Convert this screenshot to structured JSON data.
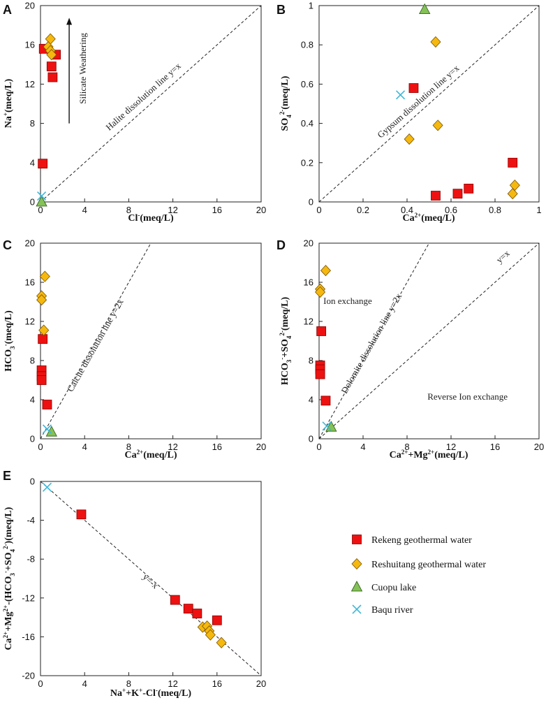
{
  "colors": {
    "rekeng": "#ee1111",
    "reshuitang": "#f5b80e",
    "cuopu": "#84c157",
    "baqu": "#3fb8d8",
    "line": "#222222"
  },
  "legend": [
    {
      "label": "Rekeng geothermal water",
      "marker": "square",
      "color": "#ee1111"
    },
    {
      "label": "Reshuitang geothermal water",
      "marker": "diamond",
      "color": "#f5b80e"
    },
    {
      "label": "Cuopu lake",
      "marker": "triangle",
      "color": "#84c157"
    },
    {
      "label": "Baqu river",
      "marker": "cross",
      "color": "#3fb8d8"
    }
  ],
  "chart_data": [
    {
      "panel": "A",
      "type": "scatter",
      "ylabel_parts": [
        {
          "t": "Na"
        },
        {
          "t": "+",
          "sup": true
        },
        {
          "t": "(meq/L)"
        }
      ],
      "xlabel_parts": [
        {
          "t": "Cl"
        },
        {
          "t": "-",
          "sup": true
        },
        {
          "t": "(meq/L)"
        }
      ],
      "xlim": [
        0,
        20
      ],
      "ylim": [
        0,
        20
      ],
      "xticks": [
        0,
        4,
        8,
        12,
        16,
        20
      ],
      "yticks": [
        0,
        4,
        8,
        12,
        16,
        20
      ],
      "lines": [
        {
          "from": [
            0,
            0
          ],
          "to": [
            20,
            20
          ],
          "label": "Halite dissolution line y=x",
          "label_at": [
            9.5,
            10.5
          ],
          "label_angle": -41.6
        }
      ],
      "annotations": [
        {
          "text": "Silicate Weathering",
          "at": [
            4.1,
            13.6
          ],
          "angle": -90
        }
      ],
      "arrows": [
        {
          "from": [
            2.6,
            8.0
          ],
          "to": [
            2.6,
            18.4
          ]
        }
      ],
      "series": [
        {
          "name": "Rekeng geothermal water",
          "marker": "square",
          "points": [
            [
              0.3,
              15.6
            ],
            [
              1.4,
              15.0
            ],
            [
              1.0,
              13.8
            ],
            [
              1.1,
              12.7
            ],
            [
              0.2,
              3.9
            ]
          ]
        },
        {
          "name": "Reshuitang geothermal water",
          "marker": "diamond",
          "points": [
            [
              0.9,
              16.6
            ],
            [
              0.7,
              15.8
            ],
            [
              0.9,
              15.4
            ],
            [
              1.0,
              15.0
            ]
          ]
        },
        {
          "name": "Cuopu lake",
          "marker": "triangle",
          "points": [
            [
              0.1,
              0.0
            ]
          ]
        },
        {
          "name": "Baqu river",
          "marker": "cross",
          "points": [
            [
              0.1,
              0.6
            ]
          ]
        }
      ]
    },
    {
      "panel": "B",
      "type": "scatter",
      "ylabel_parts": [
        {
          "t": "SO"
        },
        {
          "t": "4",
          "sub": true
        },
        {
          "t": "2-",
          "sup": true
        },
        {
          "t": "(meq/L)"
        }
      ],
      "xlabel_parts": [
        {
          "t": "Ca"
        },
        {
          "t": "2+",
          "sup": true
        },
        {
          "t": "(meq/L)"
        }
      ],
      "xlim": [
        0,
        1
      ],
      "ylim": [
        0,
        1
      ],
      "xticks": [
        0,
        0.2,
        0.4,
        0.6,
        0.8,
        1
      ],
      "yticks": [
        0,
        0.2,
        0.4,
        0.6,
        0.8,
        1
      ],
      "lines": [
        {
          "from": [
            0,
            0
          ],
          "to": [
            1,
            1
          ],
          "label": "Gypsum dissolution line y=x",
          "label_at": [
            0.46,
            0.5
          ],
          "label_angle": -41.3
        }
      ],
      "annotations": [],
      "arrows": [],
      "series": [
        {
          "name": "Rekeng geothermal water",
          "marker": "square",
          "points": [
            [
              0.43,
              0.58
            ],
            [
              0.88,
              0.2
            ],
            [
              0.68,
              0.068
            ],
            [
              0.63,
              0.042
            ],
            [
              0.53,
              0.032
            ]
          ]
        },
        {
          "name": "Reshuitang geothermal water",
          "marker": "diamond",
          "points": [
            [
              0.53,
              0.815
            ],
            [
              0.54,
              0.39
            ],
            [
              0.41,
              0.32
            ],
            [
              0.89,
              0.085
            ],
            [
              0.88,
              0.042
            ]
          ]
        },
        {
          "name": "Cuopu lake",
          "marker": "triangle",
          "points": [
            [
              0.48,
              0.98
            ]
          ]
        },
        {
          "name": "Baqu river",
          "marker": "cross",
          "points": [
            [
              0.37,
              0.545
            ]
          ]
        }
      ]
    },
    {
      "panel": "C",
      "type": "scatter",
      "ylabel_parts": [
        {
          "t": "HCO"
        },
        {
          "t": "3",
          "sub": true
        },
        {
          "t": "-",
          "sup": true
        },
        {
          "t": "(meq/L)"
        }
      ],
      "xlabel_parts": [
        {
          "t": "Ca"
        },
        {
          "t": "2+",
          "sup": true
        },
        {
          "t": "(meq/L)"
        }
      ],
      "xlim": [
        0,
        20
      ],
      "ylim": [
        0,
        20
      ],
      "xticks": [
        0,
        4,
        8,
        12,
        16,
        20
      ],
      "yticks": [
        0,
        4,
        8,
        12,
        16,
        20
      ],
      "lines": [
        {
          "from": [
            0,
            0
          ],
          "to": [
            10,
            20
          ],
          "label": "Calcite dissolution line y=2x",
          "label_at": [
            5.2,
            9.4
          ],
          "label_angle": -60.5
        }
      ],
      "annotations": [],
      "arrows": [],
      "series": [
        {
          "name": "Rekeng geothermal water",
          "marker": "square",
          "points": [
            [
              0.2,
              10.2
            ],
            [
              0.1,
              7.0
            ],
            [
              0.1,
              6.4
            ],
            [
              0.1,
              6.0
            ],
            [
              0.6,
              3.5
            ]
          ]
        },
        {
          "name": "Reshuitang geothermal water",
          "marker": "diamond",
          "points": [
            [
              0.4,
              16.6
            ],
            [
              0.1,
              14.6
            ],
            [
              0.1,
              14.2
            ],
            [
              0.3,
              11.1
            ]
          ]
        },
        {
          "name": "Cuopu lake",
          "marker": "triangle",
          "points": [
            [
              1.0,
              0.7
            ]
          ]
        },
        {
          "name": "Baqu river",
          "marker": "cross",
          "points": [
            [
              0.6,
              1.0
            ]
          ]
        }
      ]
    },
    {
      "panel": "D",
      "type": "scatter",
      "ylabel_parts": [
        {
          "t": "HCO"
        },
        {
          "t": "3",
          "sub": true
        },
        {
          "t": "-",
          "sup": true
        },
        {
          "t": "+SO"
        },
        {
          "t": "4",
          "sub": true
        },
        {
          "t": "2-",
          "sup": true
        },
        {
          "t": "(meq/L)"
        }
      ],
      "xlabel_parts": [
        {
          "t": "Ca"
        },
        {
          "t": "2+",
          "sup": true
        },
        {
          "t": "+Mg"
        },
        {
          "t": "2+",
          "sup": true
        },
        {
          "t": "(meq/L)"
        }
      ],
      "xlim": [
        0,
        20
      ],
      "ylim": [
        0,
        20
      ],
      "xticks": [
        0,
        4,
        8,
        12,
        16,
        20
      ],
      "yticks": [
        0,
        4,
        8,
        12,
        16,
        20
      ],
      "lines": [
        {
          "from": [
            0,
            0
          ],
          "to": [
            10,
            20
          ],
          "label": "Dolomite dissolution line y=2x",
          "label_at": [
            5.0,
            9.6
          ],
          "label_angle": -60.5
        },
        {
          "from": [
            0,
            0
          ],
          "to": [
            20,
            20
          ],
          "label": "y=x",
          "label_at": [
            16.9,
            18.4
          ],
          "label_angle": -41.6
        }
      ],
      "annotations": [
        {
          "text": "Ion exchange",
          "at": [
            2.6,
            13.8
          ],
          "angle": 0
        },
        {
          "text": "Reverse Ion exchange",
          "at": [
            13.5,
            4.0
          ],
          "angle": 0
        }
      ],
      "arrows": [],
      "series": [
        {
          "name": "Rekeng geothermal water",
          "marker": "square",
          "points": [
            [
              0.2,
              11.0
            ],
            [
              0.1,
              7.5
            ],
            [
              0.1,
              7.1
            ],
            [
              0.1,
              6.6
            ],
            [
              0.6,
              3.9
            ]
          ]
        },
        {
          "name": "Reshuitang geothermal water",
          "marker": "diamond",
          "points": [
            [
              0.6,
              17.2
            ],
            [
              0.1,
              15.3
            ],
            [
              0.1,
              15.0
            ]
          ]
        },
        {
          "name": "Cuopu lake",
          "marker": "triangle",
          "points": [
            [
              1.1,
              1.2
            ]
          ]
        },
        {
          "name": "Baqu river",
          "marker": "cross",
          "points": [
            [
              0.7,
              1.3
            ]
          ]
        }
      ]
    },
    {
      "panel": "E",
      "type": "scatter",
      "ylabel_parts": [
        {
          "t": "Ca"
        },
        {
          "t": "2+",
          "sup": true
        },
        {
          "t": "+Mg"
        },
        {
          "t": "2+",
          "sup": true
        },
        {
          "t": "-(HCO"
        },
        {
          "t": "3",
          "sub": true
        },
        {
          "t": "-",
          "sup": true
        },
        {
          "t": "+SO"
        },
        {
          "t": "4",
          "sub": true
        },
        {
          "t": "2-",
          "sup": true
        },
        {
          "t": ")(meq/L)"
        }
      ],
      "xlabel_parts": [
        {
          "t": "Na"
        },
        {
          "t": "+",
          "sup": true
        },
        {
          "t": "+K"
        },
        {
          "t": "+",
          "sup": true
        },
        {
          "t": "-Cl"
        },
        {
          "t": "-",
          "sup": true
        },
        {
          "t": "(meq/L)"
        }
      ],
      "xlim": [
        0,
        20
      ],
      "ylim": [
        -20,
        0
      ],
      "xticks": [
        0,
        4,
        8,
        12,
        16,
        20
      ],
      "yticks": [
        0,
        -4,
        -8,
        -12,
        -16,
        -20
      ],
      "lines": [
        {
          "from": [
            0,
            0
          ],
          "to": [
            20,
            -20
          ],
          "label": "y=-x",
          "label_at": [
            9.8,
            -10.5
          ],
          "label_angle": 41.6
        }
      ],
      "annotations": [],
      "arrows": [],
      "series": [
        {
          "name": "Rekeng geothermal water",
          "marker": "square",
          "points": [
            [
              3.7,
              -3.4
            ],
            [
              12.2,
              -12.2
            ],
            [
              13.4,
              -13.1
            ],
            [
              14.2,
              -13.6
            ],
            [
              16.0,
              -14.3
            ]
          ]
        },
        {
          "name": "Reshuitang geothermal water",
          "marker": "diamond",
          "points": [
            [
              14.7,
              -15.0
            ],
            [
              15.1,
              -14.9
            ],
            [
              15.3,
              -15.4
            ],
            [
              15.4,
              -15.8
            ],
            [
              16.4,
              -16.6
            ]
          ]
        },
        {
          "name": "Baqu river",
          "marker": "cross",
          "points": [
            [
              0.6,
              -0.6
            ]
          ]
        }
      ]
    }
  ]
}
